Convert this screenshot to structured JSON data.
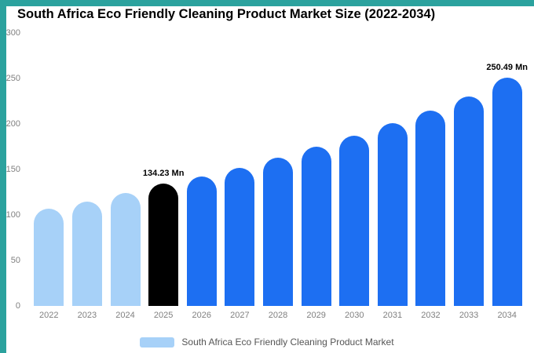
{
  "frame": {
    "border_color": "#2ba29e",
    "background": "#ffffff"
  },
  "title": "South Africa Eco Friendly Cleaning Product Market Size (2022-2034)",
  "chart_data": {
    "type": "bar",
    "title": "South Africa Eco Friendly Cleaning Product Market Size (2022-2034)",
    "categories": [
      "2022",
      "2023",
      "2024",
      "2025",
      "2026",
      "2027",
      "2028",
      "2029",
      "2030",
      "2031",
      "2032",
      "2033",
      "2034"
    ],
    "values": [
      107,
      115,
      124,
      134.23,
      142,
      152,
      163,
      175,
      187,
      201,
      215,
      230,
      250.49
    ],
    "bar_colors": [
      "#a7d1f8",
      "#a7d1f8",
      "#a7d1f8",
      "#000000",
      "#1d6ff2",
      "#1d6ff2",
      "#1d6ff2",
      "#1d6ff2",
      "#1d6ff2",
      "#1d6ff2",
      "#1d6ff2",
      "#1d6ff2",
      "#1d6ff2"
    ],
    "data_labels": [
      {
        "index": 3,
        "text": "134.23 Mn"
      },
      {
        "index": 12,
        "text": "250.49 Mn"
      }
    ],
    "xlabel": "",
    "ylabel": "",
    "ylim": [
      0,
      300
    ],
    "yticks": [
      0,
      50,
      100,
      150,
      200,
      250,
      300
    ],
    "grid": false,
    "legend": {
      "position": "bottom",
      "items": [
        {
          "label": "South Africa Eco Friendly Cleaning Product Market",
          "color": "#a7d1f8"
        }
      ]
    },
    "colors": {
      "highlight_bar": "#000000",
      "past_bars": "#a7d1f8",
      "forecast_bars": "#1d6ff2",
      "axis_text": "#808080"
    }
  }
}
